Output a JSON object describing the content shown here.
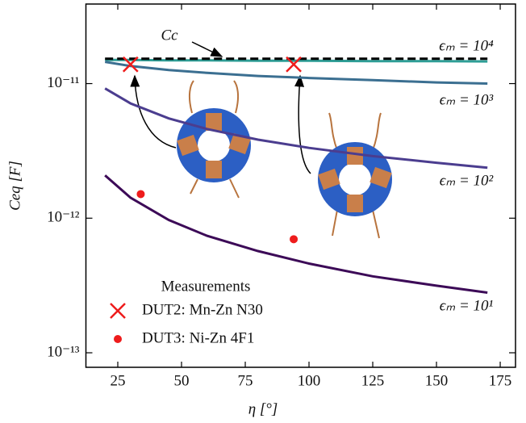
{
  "chart_data": {
    "type": "line",
    "x_label": "η [°]",
    "y_label": "Ceq [F]",
    "xlim": [
      12.5,
      181
    ],
    "xticks": [
      25,
      50,
      75,
      100,
      125,
      150,
      175
    ],
    "ylim": [
      7.8e-14,
      3.9e-11
    ],
    "log_y": true,
    "yticks": [
      {
        "value": 1e-13,
        "label": "10⁻¹³"
      },
      {
        "value": 1e-12,
        "label": "10⁻¹²"
      },
      {
        "value": 1e-11,
        "label": "10⁻¹¹"
      }
    ],
    "x": [
      20,
      30,
      45,
      60,
      80,
      100,
      125,
      150,
      170
    ],
    "series": [
      {
        "name": "ϵₘ = 10⁴",
        "color": "#2e9e96",
        "values": [
          1.5e-11,
          1.5e-11,
          1.49e-11,
          1.49e-11,
          1.48e-11,
          1.48e-11,
          1.47e-11,
          1.47e-11,
          1.46e-11
        ]
      },
      {
        "name": "Cc",
        "color": "#000000",
        "dashed": true,
        "values": [
          1.53e-11,
          1.53e-11,
          1.53e-11,
          1.53e-11,
          1.53e-11,
          1.53e-11,
          1.53e-11,
          1.53e-11,
          1.53e-11
        ]
      },
      {
        "name": "ϵₘ = 10³",
        "color": "#3b6f91",
        "values": [
          1.45e-11,
          1.35e-11,
          1.26e-11,
          1.2e-11,
          1.14e-11,
          1.1e-11,
          1.06e-11,
          1.02e-11,
          1e-11
        ]
      },
      {
        "name": "ϵₘ = 10²",
        "color": "#4b3d8f",
        "values": [
          9.2e-12,
          7.12e-12,
          5.51e-12,
          4.6e-12,
          3.83e-12,
          3.33e-12,
          2.89e-12,
          2.58e-12,
          2.37e-12
        ]
      },
      {
        "name": "ϵₘ = 10¹",
        "color": "#3c0a57",
        "values": [
          2.08e-12,
          1.42e-12,
          9.7e-13,
          7.4e-13,
          5.7e-13,
          4.6e-13,
          3.7e-13,
          3.15e-13,
          2.8e-13
        ]
      }
    ],
    "legend_title": "Measurements",
    "measurements": [
      {
        "name": "DUT2: Mn-Zn N30",
        "marker": "x",
        "color": "#ee1c1c",
        "x": [
          30,
          94
        ],
        "values": [
          1.39e-11,
          1.39e-11
        ]
      },
      {
        "name": "DUT3: Ni-Zn 4F1",
        "marker": "dot",
        "color": "#ee1c1c",
        "x": [
          34,
          94
        ],
        "values": [
          1.51e-12,
          6.98e-13
        ]
      }
    ]
  }
}
